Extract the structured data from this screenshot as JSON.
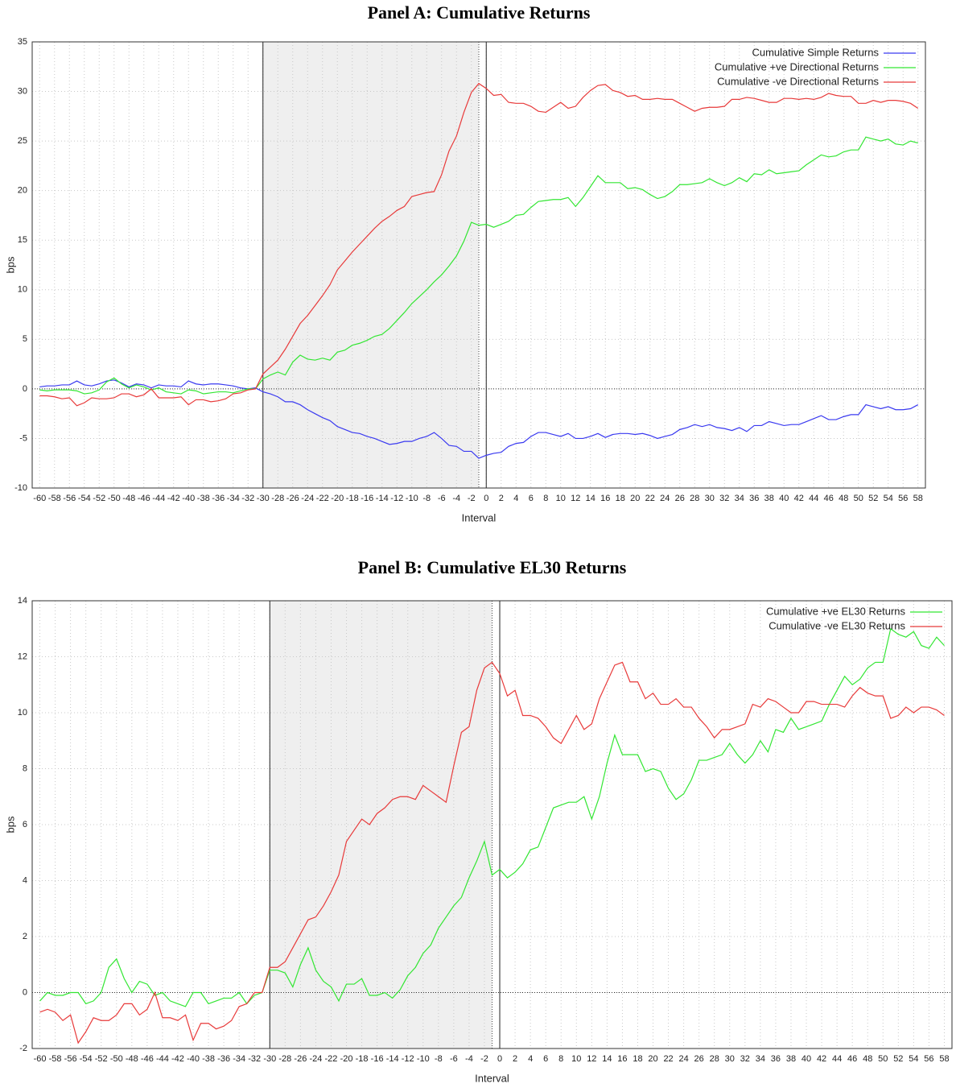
{
  "chart_data": [
    {
      "type": "line",
      "title": "Panel A: Cumulative Returns",
      "x_label": "Interval",
      "y_label": "bps",
      "x": [
        -60,
        -59,
        -58,
        -57,
        -56,
        -55,
        -54,
        -53,
        -52,
        -51,
        -50,
        -49,
        -48,
        -47,
        -46,
        -45,
        -44,
        -43,
        -42,
        -41,
        -40,
        -39,
        -38,
        -37,
        -36,
        -35,
        -34,
        -33,
        -32,
        -31,
        -30,
        -29,
        -28,
        -27,
        -26,
        -25,
        -24,
        -23,
        -22,
        -21,
        -20,
        -19,
        -18,
        -17,
        -16,
        -15,
        -14,
        -13,
        -12,
        -11,
        -10,
        -9,
        -8,
        -7,
        -6,
        -5,
        -4,
        -3,
        -2,
        -1,
        0,
        1,
        2,
        3,
        4,
        5,
        6,
        7,
        8,
        9,
        10,
        11,
        12,
        13,
        14,
        15,
        16,
        17,
        18,
        19,
        20,
        21,
        22,
        23,
        24,
        25,
        26,
        27,
        28,
        29,
        30,
        31,
        32,
        33,
        34,
        35,
        36,
        37,
        38,
        39,
        40,
        41,
        42,
        43,
        44,
        45,
        46,
        47,
        48,
        49,
        50,
        51,
        52,
        53,
        54,
        55,
        56,
        57,
        58
      ],
      "series": [
        {
          "name": "Cumulative Simple Returns",
          "color": "#3a3af0",
          "values": [
            0.2,
            0.3,
            0.3,
            0.4,
            0.4,
            0.8,
            0.4,
            0.3,
            0.5,
            0.8,
            0.9,
            0.6,
            0.2,
            0.5,
            0.4,
            0.1,
            0.4,
            0.3,
            0.3,
            0.2,
            0.8,
            0.5,
            0.4,
            0.5,
            0.5,
            0.4,
            0.3,
            0.1,
            0,
            0.1,
            -0.3,
            -0.5,
            -0.8,
            -1.3,
            -1.3,
            -1.6,
            -2.1,
            -2.5,
            -2.9,
            -3.2,
            -3.8,
            -4.1,
            -4.4,
            -4.5,
            -4.8,
            -5.0,
            -5.3,
            -5.6,
            -5.5,
            -5.3,
            -5.3,
            -5.0,
            -4.8,
            -4.4,
            -5.0,
            -5.7,
            -5.8,
            -6.3,
            -6.3,
            -7.0,
            -6.7,
            -6.5,
            -6.4,
            -5.8,
            -5.5,
            -5.4,
            -4.8,
            -4.4,
            -4.4,
            -4.6,
            -4.8,
            -4.5,
            -5.0,
            -5.0,
            -4.8,
            -4.5,
            -4.9,
            -4.6,
            -4.5,
            -4.5,
            -4.6,
            -4.5,
            -4.7,
            -5.0,
            -4.8,
            -4.6,
            -4.1,
            -3.9,
            -3.6,
            -3.8,
            -3.6,
            -3.9,
            -4.0,
            -4.2,
            -3.9,
            -4.3,
            -3.7,
            -3.7,
            -3.3,
            -3.5,
            -3.7,
            -3.6,
            -3.6,
            -3.3,
            -3.0,
            -2.7,
            -3.1,
            -3.1,
            -2.8,
            -2.6,
            -2.6,
            -1.6,
            -1.8,
            -2.0,
            -1.8,
            -2.1,
            -2.1,
            -2.0,
            -1.6
          ]
        },
        {
          "name": "Cumulative +ve Directional Returns",
          "color": "#33e633",
          "values": [
            -0.1,
            -0.2,
            -0.1,
            -0.1,
            -0.1,
            -0.2,
            -0.5,
            -0.4,
            -0.1,
            0.7,
            1.1,
            0.5,
            0.1,
            0.4,
            0.2,
            -0.1,
            0.1,
            -0.3,
            -0.4,
            -0.5,
            -0.1,
            -0.2,
            -0.5,
            -0.4,
            -0.3,
            -0.3,
            -0.4,
            -0.2,
            0,
            0,
            1.0,
            1.4,
            1.7,
            1.4,
            2.7,
            3.4,
            3.0,
            2.9,
            3.1,
            2.9,
            3.7,
            3.9,
            4.4,
            4.6,
            4.9,
            5.3,
            5.5,
            6.1,
            6.9,
            7.7,
            8.6,
            9.3,
            10.0,
            10.8,
            11.5,
            12.4,
            13.4,
            14.9,
            16.8,
            16.5,
            16.6,
            16.3,
            16.6,
            16.9,
            17.5,
            17.6,
            18.3,
            18.9,
            19.0,
            19.1,
            19.1,
            19.3,
            18.4,
            19.3,
            20.4,
            21.5,
            20.8,
            20.8,
            20.8,
            20.2,
            20.3,
            20.1,
            19.6,
            19.2,
            19.4,
            19.9,
            20.6,
            20.6,
            20.7,
            20.8,
            21.2,
            20.8,
            20.5,
            20.8,
            21.3,
            20.9,
            21.7,
            21.6,
            22.1,
            21.7,
            21.8,
            21.9,
            22.0,
            22.6,
            23.1,
            23.6,
            23.4,
            23.5,
            23.9,
            24.1,
            24.1,
            25.4,
            25.2,
            25.0,
            25.2,
            24.7,
            24.6,
            25.0,
            24.8
          ]
        },
        {
          "name": "Cumulative -ve Directional Returns",
          "color": "#e83a3a",
          "values": [
            -0.7,
            -0.7,
            -0.8,
            -1.0,
            -0.9,
            -1.7,
            -1.4,
            -0.9,
            -1.0,
            -1.0,
            -0.9,
            -0.5,
            -0.5,
            -0.8,
            -0.6,
            0,
            -0.9,
            -0.9,
            -0.9,
            -0.8,
            -1.6,
            -1.1,
            -1.1,
            -1.3,
            -1.2,
            -1.0,
            -0.5,
            -0.4,
            -0.1,
            0,
            1.5,
            2.2,
            2.9,
            4.0,
            5.3,
            6.6,
            7.4,
            8.4,
            9.4,
            10.5,
            12.0,
            12.9,
            13.8,
            14.6,
            15.4,
            16.2,
            16.9,
            17.4,
            18.0,
            18.4,
            19.4,
            19.6,
            19.8,
            19.9,
            21.6,
            24.0,
            25.5,
            27.9,
            29.9,
            30.8,
            30.3,
            29.6,
            29.7,
            28.9,
            28.8,
            28.8,
            28.5,
            28.0,
            27.9,
            28.4,
            28.9,
            28.3,
            28.5,
            29.4,
            30.1,
            30.6,
            30.7,
            30.1,
            29.9,
            29.5,
            29.6,
            29.2,
            29.2,
            29.3,
            29.2,
            29.2,
            28.8,
            28.4,
            28.0,
            28.3,
            28.4,
            28.4,
            28.5,
            29.2,
            29.2,
            29.4,
            29.3,
            29.1,
            28.9,
            28.9,
            29.3,
            29.3,
            29.2,
            29.3,
            29.2,
            29.4,
            29.8,
            29.6,
            29.5,
            29.5,
            28.8,
            28.8,
            29.1,
            28.9,
            29.1,
            29.1,
            29.0,
            28.8,
            28.3
          ]
        }
      ],
      "xlim": [
        -61,
        59
      ],
      "xticks": [
        -60,
        -58,
        -56,
        -54,
        -52,
        -50,
        -48,
        -46,
        -44,
        -42,
        -40,
        -38,
        -36,
        -34,
        -32,
        -30,
        -28,
        -26,
        -24,
        -22,
        -20,
        -18,
        -16,
        -14,
        -12,
        -10,
        -8,
        -6,
        -4,
        -2,
        0,
        2,
        4,
        6,
        8,
        10,
        12,
        14,
        16,
        18,
        20,
        22,
        24,
        26,
        28,
        30,
        32,
        34,
        36,
        38,
        40,
        42,
        44,
        46,
        48,
        50,
        52,
        54,
        56,
        58
      ],
      "ylim": [
        -10,
        35
      ],
      "yticks": [
        -10,
        -5,
        0,
        5,
        10,
        15,
        20,
        25,
        30,
        35
      ],
      "grid": true,
      "legend": "top-right",
      "shaded_region": [
        -30,
        -1
      ],
      "vlines": [
        -30,
        0
      ]
    },
    {
      "type": "line",
      "title": "Panel B: Cumulative EL30 Returns",
      "x_label": "Interval",
      "y_label": "bps",
      "x": [
        -60,
        -59,
        -58,
        -57,
        -56,
        -55,
        -54,
        -53,
        -52,
        -51,
        -50,
        -49,
        -48,
        -47,
        -46,
        -45,
        -44,
        -43,
        -42,
        -41,
        -40,
        -39,
        -38,
        -37,
        -36,
        -35,
        -34,
        -33,
        -32,
        -31,
        -30,
        -29,
        -28,
        -27,
        -26,
        -25,
        -24,
        -23,
        -22,
        -21,
        -20,
        -19,
        -18,
        -17,
        -16,
        -15,
        -14,
        -13,
        -12,
        -11,
        -10,
        -9,
        -8,
        -7,
        -6,
        -5,
        -4,
        -3,
        -2,
        -1,
        0,
        1,
        2,
        3,
        4,
        5,
        6,
        7,
        8,
        9,
        10,
        11,
        12,
        13,
        14,
        15,
        16,
        17,
        18,
        19,
        20,
        21,
        22,
        23,
        24,
        25,
        26,
        27,
        28,
        29,
        30,
        31,
        32,
        33,
        34,
        35,
        36,
        37,
        38,
        39,
        40,
        41,
        42,
        43,
        44,
        45,
        46,
        47,
        48,
        49,
        50,
        51,
        52,
        53,
        54,
        55,
        56,
        57,
        58
      ],
      "series": [
        {
          "name": "Cumulative +ve EL30 Returns",
          "color": "#33e633",
          "values": [
            -0.3,
            0.0,
            -0.1,
            -0.1,
            0.0,
            0.0,
            -0.4,
            -0.3,
            0.0,
            0.9,
            1.2,
            0.5,
            0.0,
            0.4,
            0.3,
            -0.1,
            0.0,
            -0.3,
            -0.4,
            -0.5,
            0.0,
            0.0,
            -0.4,
            -0.3,
            -0.2,
            -0.2,
            0.0,
            -0.4,
            -0.1,
            0.0,
            0.8,
            0.8,
            0.7,
            0.2,
            1.0,
            1.6,
            0.8,
            0.4,
            0.2,
            -0.3,
            0.3,
            0.3,
            0.5,
            -0.1,
            -0.1,
            0.0,
            -0.2,
            0.1,
            0.6,
            0.9,
            1.4,
            1.7,
            2.3,
            2.7,
            3.1,
            3.4,
            4.1,
            4.7,
            5.4,
            4.2,
            4.4,
            4.1,
            4.3,
            4.6,
            5.1,
            5.2,
            5.9,
            6.6,
            6.7,
            6.8,
            6.8,
            7.0,
            6.2,
            7.0,
            8.2,
            9.2,
            8.5,
            8.5,
            8.5,
            7.9,
            8.0,
            7.9,
            7.3,
            6.9,
            7.1,
            7.6,
            8.3,
            8.3,
            8.4,
            8.5,
            8.9,
            8.5,
            8.2,
            8.5,
            9.0,
            8.6,
            9.4,
            9.3,
            9.8,
            9.4,
            9.5,
            9.6,
            9.7,
            10.3,
            10.8,
            11.3,
            11.0,
            11.2,
            11.6,
            11.8,
            11.8,
            13.0,
            12.8,
            12.7,
            12.9,
            12.4,
            12.3,
            12.7,
            12.4
          ]
        },
        {
          "name": "Cumulative -ve EL30 Returns",
          "color": "#e83a3a",
          "values": [
            -0.7,
            -0.6,
            -0.7,
            -1.0,
            -0.8,
            -1.8,
            -1.4,
            -0.9,
            -1.0,
            -1.0,
            -0.8,
            -0.4,
            -0.4,
            -0.8,
            -0.6,
            0.0,
            -0.9,
            -0.9,
            -1.0,
            -0.8,
            -1.7,
            -1.1,
            -1.1,
            -1.3,
            -1.2,
            -1.0,
            -0.5,
            -0.4,
            0.0,
            0.0,
            0.9,
            0.9,
            1.1,
            1.6,
            2.1,
            2.6,
            2.7,
            3.1,
            3.6,
            4.2,
            5.4,
            5.8,
            6.2,
            6.0,
            6.4,
            6.6,
            6.9,
            7.0,
            7.0,
            6.9,
            7.4,
            7.2,
            7.0,
            6.8,
            8.1,
            9.3,
            9.5,
            10.8,
            11.6,
            11.8,
            11.4,
            10.6,
            10.8,
            9.9,
            9.9,
            9.8,
            9.5,
            9.1,
            8.9,
            9.4,
            9.9,
            9.4,
            9.6,
            10.5,
            11.1,
            11.7,
            11.8,
            11.1,
            11.1,
            10.5,
            10.7,
            10.3,
            10.3,
            10.5,
            10.2,
            10.2,
            9.8,
            9.5,
            9.1,
            9.4,
            9.4,
            9.5,
            9.6,
            10.3,
            10.2,
            10.5,
            10.4,
            10.2,
            10.0,
            10.0,
            10.4,
            10.4,
            10.3,
            10.3,
            10.3,
            10.2,
            10.6,
            10.9,
            10.7,
            10.6,
            10.6,
            9.8,
            9.9,
            10.2,
            10.0,
            10.2,
            10.2,
            10.1,
            9.9
          ]
        }
      ],
      "xlim": [
        -61,
        59
      ],
      "xticks": [
        -60,
        -58,
        -56,
        -54,
        -52,
        -50,
        -48,
        -46,
        -44,
        -42,
        -40,
        -38,
        -36,
        -34,
        -32,
        -30,
        -28,
        -26,
        -24,
        -22,
        -20,
        -18,
        -16,
        -14,
        -12,
        -10,
        -8,
        -6,
        -4,
        -2,
        0,
        2,
        4,
        6,
        8,
        10,
        12,
        14,
        16,
        18,
        20,
        22,
        24,
        26,
        28,
        30,
        32,
        34,
        36,
        38,
        40,
        42,
        44,
        46,
        48,
        50,
        52,
        54,
        56,
        58
      ],
      "ylim": [
        -2,
        14
      ],
      "yticks": [
        -2,
        0,
        2,
        4,
        6,
        8,
        10,
        12,
        14
      ],
      "grid": true,
      "legend": "top-right",
      "shaded_region": [
        -30,
        -1
      ],
      "vlines": [
        -30,
        0
      ]
    }
  ]
}
